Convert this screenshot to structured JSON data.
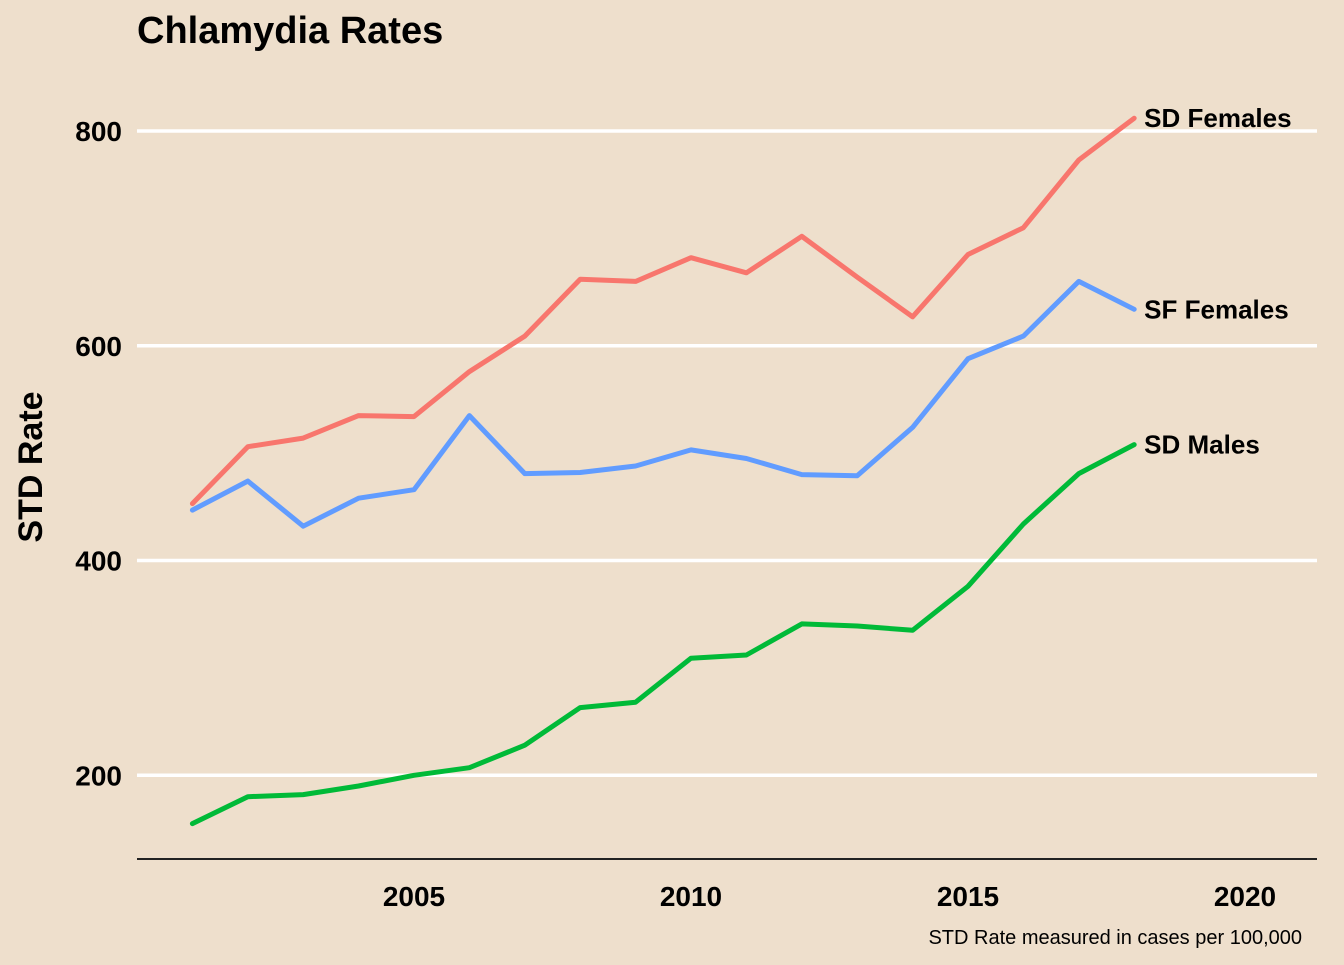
{
  "chart_data": {
    "type": "line",
    "title": "Chlamydia Rates",
    "xlabel": "",
    "ylabel": "STD Rate",
    "caption": "STD Rate measured in cases per 100,000",
    "xlim": [
      2000,
      2021.3
    ],
    "ylim": [
      122,
      855
    ],
    "x_ticks": [
      2005,
      2010,
      2015,
      2020
    ],
    "y_ticks": [
      200,
      400,
      600,
      800
    ],
    "grid": "horizontal",
    "legend": "direct labels at line ends",
    "background": "#EEDFCC",
    "x": [
      2001,
      2002,
      2003,
      2004,
      2005,
      2006,
      2007,
      2008,
      2009,
      2010,
      2011,
      2012,
      2013,
      2014,
      2015,
      2016,
      2017,
      2018
    ],
    "series": [
      {
        "name": "SD Females",
        "color": "#F8766D",
        "values": [
          453,
          506,
          514,
          535,
          534,
          576,
          609,
          662,
          660,
          682,
          668,
          702,
          664,
          627,
          685,
          710,
          773,
          812
        ]
      },
      {
        "name": "SF Females",
        "color": "#619CFF",
        "values": [
          447,
          474,
          432,
          458,
          466,
          535,
          481,
          482,
          488,
          503,
          495,
          480,
          479,
          524,
          588,
          609,
          660,
          634
        ]
      },
      {
        "name": "SD Males",
        "color": "#00BA38",
        "values": [
          155,
          180,
          182,
          190,
          200,
          207,
          228,
          263,
          268,
          309,
          312,
          341,
          339,
          335,
          376,
          434,
          481,
          508
        ]
      }
    ]
  }
}
